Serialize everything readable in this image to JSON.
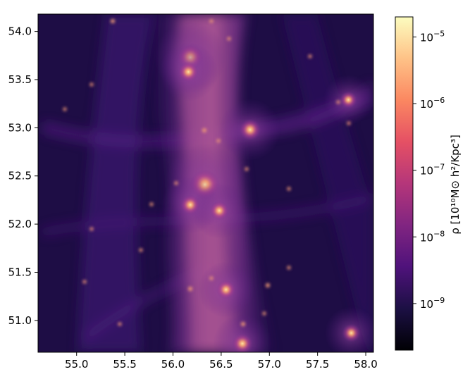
{
  "chart_data": {
    "type": "heatmap",
    "title": "",
    "xlabel": "",
    "ylabel": "",
    "xlim": [
      54.6,
      58.08
    ],
    "ylim": [
      50.67,
      54.18
    ],
    "x_ticks": [
      {
        "value": 55.0,
        "label": "55.0"
      },
      {
        "value": 55.5,
        "label": "55.5"
      },
      {
        "value": 56.0,
        "label": "56.0"
      },
      {
        "value": 56.5,
        "label": "56.5"
      },
      {
        "value": 57.0,
        "label": "57.0"
      },
      {
        "value": 57.5,
        "label": "57.5"
      },
      {
        "value": 58.0,
        "label": "58.0"
      }
    ],
    "y_ticks": [
      {
        "value": 51.0,
        "label": "51.0"
      },
      {
        "value": 51.5,
        "label": "51.5"
      },
      {
        "value": 52.0,
        "label": "52.0"
      },
      {
        "value": 52.5,
        "label": "52.5"
      },
      {
        "value": 53.0,
        "label": "53.0"
      },
      {
        "value": 53.5,
        "label": "53.5"
      },
      {
        "value": 54.0,
        "label": "54.0"
      }
    ],
    "colormap": "magma",
    "colorbar": {
      "label": "ρ [10¹⁰M⊙ h²/Kpc³]",
      "scale": "log",
      "range": [
        2e-10,
        2e-05
      ],
      "ticks": [
        {
          "exp": -9,
          "base": "10",
          "sup": "−9"
        },
        {
          "exp": -8,
          "base": "10",
          "sup": "−8"
        },
        {
          "exp": -7,
          "base": "10",
          "sup": "−7"
        },
        {
          "exp": -6,
          "base": "10",
          "sup": "−6"
        },
        {
          "exp": -5,
          "base": "10",
          "sup": "−5"
        }
      ]
    },
    "features": [
      {
        "x": 56.33,
        "y": 52.41,
        "intensity": 1.0
      },
      {
        "x": 56.18,
        "y": 53.73,
        "intensity": 0.82
      },
      {
        "x": 56.16,
        "y": 53.58,
        "intensity": 0.6
      },
      {
        "x": 56.8,
        "y": 52.98,
        "intensity": 0.65
      },
      {
        "x": 56.72,
        "y": 50.76,
        "intensity": 0.6
      },
      {
        "x": 56.55,
        "y": 51.32,
        "intensity": 0.55
      },
      {
        "x": 56.18,
        "y": 52.2,
        "intensity": 0.58
      },
      {
        "x": 56.48,
        "y": 52.14,
        "intensity": 0.55
      },
      {
        "x": 57.85,
        "y": 50.87,
        "intensity": 0.5
      },
      {
        "x": 57.82,
        "y": 53.29,
        "intensity": 0.45
      }
    ],
    "colors": {
      "magma": [
        "#000004",
        "#1c1044",
        "#4f127b",
        "#812581",
        "#b5367a",
        "#e55064",
        "#fb8761",
        "#fec287",
        "#fcfdbf"
      ]
    }
  }
}
